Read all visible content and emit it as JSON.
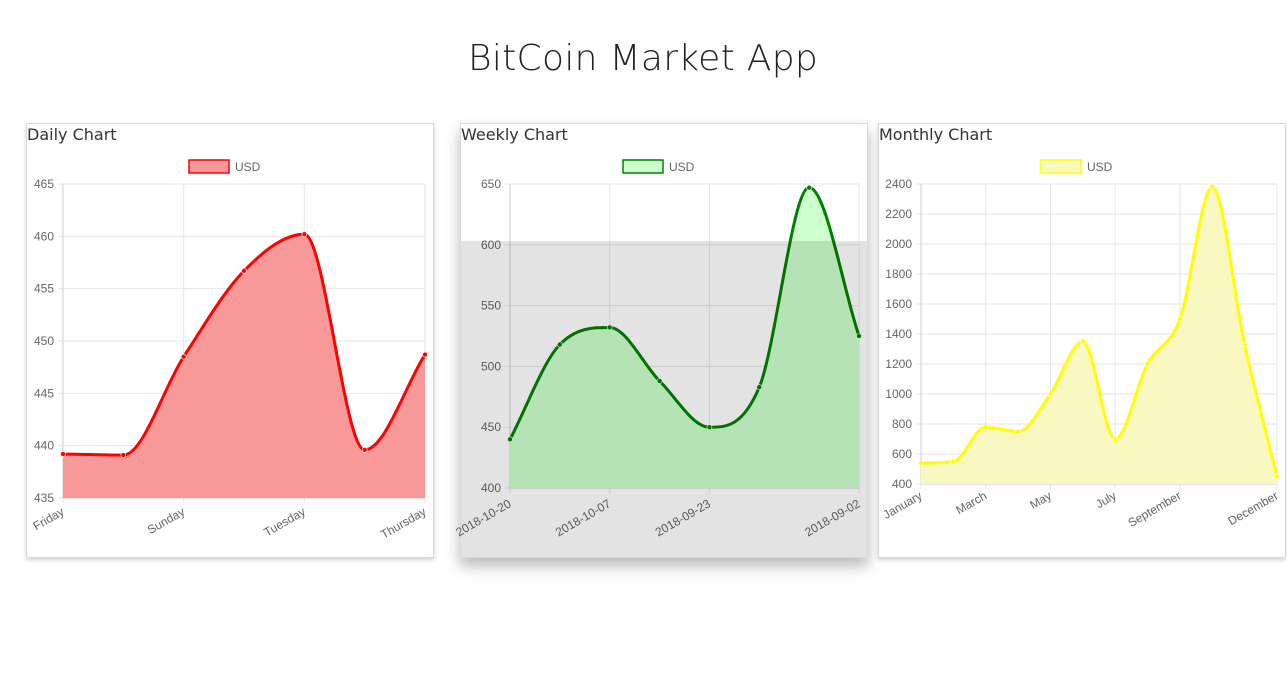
{
  "app": {
    "title": "BitCoin Market App"
  },
  "charts": [
    {
      "id": "daily",
      "title": "Daily Chart",
      "type": "area",
      "legend": "USD",
      "color": "#ff0000",
      "fill": "#f79999",
      "categories": [
        "Friday",
        "",
        "Sunday",
        "",
        "Tuesday",
        "",
        "Thursday"
      ],
      "values": [
        439.2,
        439.1,
        448.5,
        456.7,
        460.2,
        439.6,
        448.7
      ],
      "ylim": [
        435,
        465
      ],
      "yticks": [
        435,
        440,
        445,
        450,
        455,
        460,
        465
      ]
    },
    {
      "id": "weekly",
      "title": "Weekly Chart",
      "type": "area",
      "legend": "USD",
      "color": "#008000",
      "fill": "#ccffcc",
      "categories": [
        "2018-10-20",
        "",
        "2018-10-07",
        "",
        "2018-09-23",
        "",
        "",
        "2018-09-02"
      ],
      "values": [
        440,
        518,
        532,
        488,
        450,
        483,
        647,
        525
      ],
      "ylim": [
        400,
        650
      ],
      "yticks": [
        400,
        450,
        500,
        550,
        600,
        650
      ]
    },
    {
      "id": "monthly",
      "title": "Monthly Chart",
      "type": "area",
      "legend": "USD",
      "color": "#ffff00",
      "fill": "#f8f8c0",
      "categories": [
        "January",
        "",
        "March",
        "",
        "May",
        "",
        "July",
        "",
        "September",
        "",
        "",
        "December"
      ],
      "values": [
        540,
        550,
        780,
        750,
        1000,
        1350,
        700,
        1200,
        1500,
        2380,
        1330,
        450
      ],
      "ylim": [
        400,
        2400
      ],
      "yticks": [
        400,
        600,
        800,
        1000,
        1200,
        1400,
        1600,
        1800,
        2000,
        2200,
        2400
      ]
    }
  ]
}
